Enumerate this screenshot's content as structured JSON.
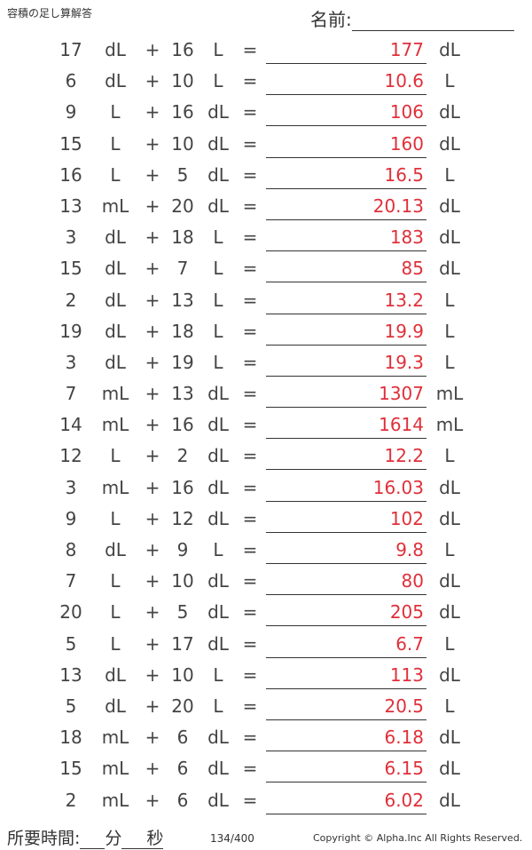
{
  "header": {
    "title": "容積の足し算解答",
    "name_label": "名前:"
  },
  "problems": [
    {
      "a": "17",
      "u1": "dL",
      "b": "16",
      "u2": "L",
      "ans": "177",
      "au": "dL"
    },
    {
      "a": "6",
      "u1": "dL",
      "b": "10",
      "u2": "L",
      "ans": "10.6",
      "au": "L"
    },
    {
      "a": "9",
      "u1": "L",
      "b": "16",
      "u2": "dL",
      "ans": "106",
      "au": "dL"
    },
    {
      "a": "15",
      "u1": "L",
      "b": "10",
      "u2": "dL",
      "ans": "160",
      "au": "dL"
    },
    {
      "a": "16",
      "u1": "L",
      "b": "5",
      "u2": "dL",
      "ans": "16.5",
      "au": "L"
    },
    {
      "a": "13",
      "u1": "mL",
      "b": "20",
      "u2": "dL",
      "ans": "20.13",
      "au": "dL"
    },
    {
      "a": "3",
      "u1": "dL",
      "b": "18",
      "u2": "L",
      "ans": "183",
      "au": "dL"
    },
    {
      "a": "15",
      "u1": "dL",
      "b": "7",
      "u2": "L",
      "ans": "85",
      "au": "dL"
    },
    {
      "a": "2",
      "u1": "dL",
      "b": "13",
      "u2": "L",
      "ans": "13.2",
      "au": "L"
    },
    {
      "a": "19",
      "u1": "dL",
      "b": "18",
      "u2": "L",
      "ans": "19.9",
      "au": "L"
    },
    {
      "a": "3",
      "u1": "dL",
      "b": "19",
      "u2": "L",
      "ans": "19.3",
      "au": "L"
    },
    {
      "a": "7",
      "u1": "mL",
      "b": "13",
      "u2": "dL",
      "ans": "1307",
      "au": "mL"
    },
    {
      "a": "14",
      "u1": "mL",
      "b": "16",
      "u2": "dL",
      "ans": "1614",
      "au": "mL"
    },
    {
      "a": "12",
      "u1": "L",
      "b": "2",
      "u2": "dL",
      "ans": "12.2",
      "au": "L"
    },
    {
      "a": "3",
      "u1": "mL",
      "b": "16",
      "u2": "dL",
      "ans": "16.03",
      "au": "dL"
    },
    {
      "a": "9",
      "u1": "L",
      "b": "12",
      "u2": "dL",
      "ans": "102",
      "au": "dL"
    },
    {
      "a": "8",
      "u1": "dL",
      "b": "9",
      "u2": "L",
      "ans": "9.8",
      "au": "L"
    },
    {
      "a": "7",
      "u1": "L",
      "b": "10",
      "u2": "dL",
      "ans": "80",
      "au": "dL"
    },
    {
      "a": "20",
      "u1": "L",
      "b": "5",
      "u2": "dL",
      "ans": "205",
      "au": "dL"
    },
    {
      "a": "5",
      "u1": "L",
      "b": "17",
      "u2": "dL",
      "ans": "6.7",
      "au": "L"
    },
    {
      "a": "13",
      "u1": "dL",
      "b": "10",
      "u2": "L",
      "ans": "113",
      "au": "dL"
    },
    {
      "a": "5",
      "u1": "dL",
      "b": "20",
      "u2": "L",
      "ans": "20.5",
      "au": "L"
    },
    {
      "a": "18",
      "u1": "mL",
      "b": "6",
      "u2": "dL",
      "ans": "6.18",
      "au": "dL"
    },
    {
      "a": "15",
      "u1": "mL",
      "b": "6",
      "u2": "dL",
      "ans": "6.15",
      "au": "dL"
    },
    {
      "a": "2",
      "u1": "mL",
      "b": "6",
      "u2": "dL",
      "ans": "6.02",
      "au": "dL"
    }
  ],
  "symbols": {
    "plus": "+",
    "equals": "="
  },
  "footer": {
    "time_label": "所要時間:",
    "minutes": "分",
    "seconds": "秒",
    "page": "134/400",
    "copyright": "Copyright © Alpha.Inc All Rights Reserved."
  }
}
